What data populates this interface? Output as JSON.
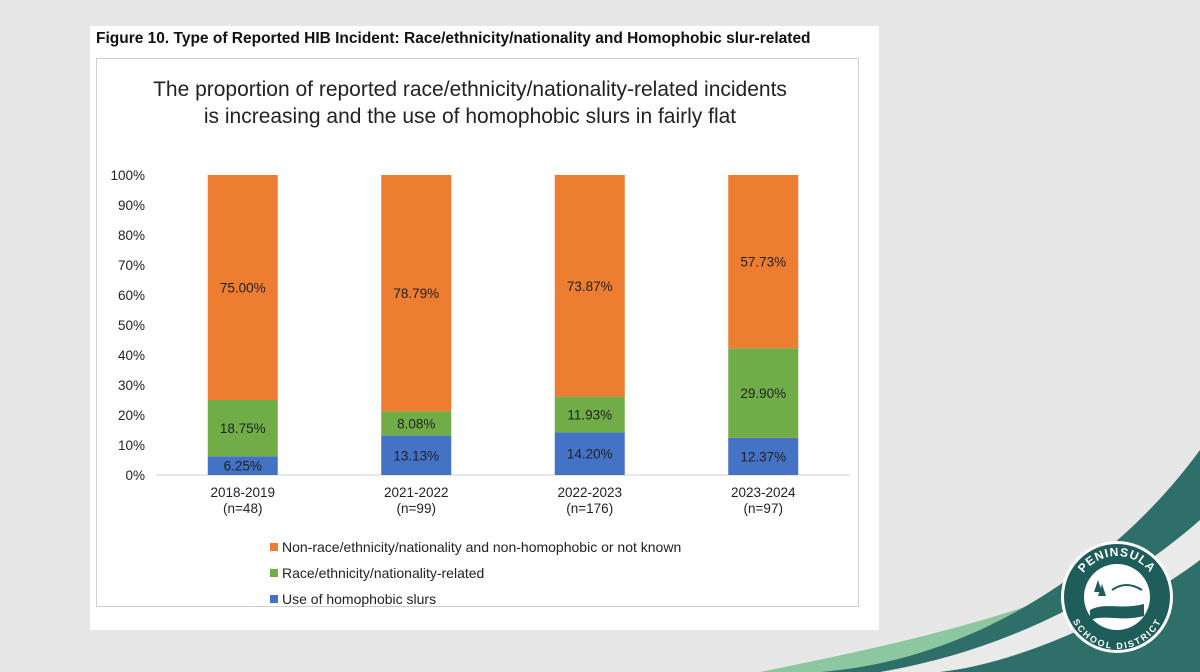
{
  "figure_caption": "Figure 10. Type of Reported HIB Incident: Race/ethnicity/nationality and Homophobic slur-related",
  "logo": {
    "text_top": "PENINSULA",
    "text_bottom": "SCHOOL DISTRICT"
  },
  "colors": {
    "non_race": "#ed7d31",
    "race": "#70ad47",
    "homophobic": "#4472c4",
    "slide_accent_teal": "#2f6f6a",
    "slide_accent_green": "#8cc7a0"
  },
  "chart_data": {
    "type": "bar",
    "stacked": true,
    "title": "The proportion of reported race/ethnicity/nationality-related incidents is increasing and the use of homophobic slurs in fairly flat",
    "ylim": [
      0,
      100
    ],
    "y_ticks": [
      "0%",
      "10%",
      "20%",
      "30%",
      "40%",
      "50%",
      "60%",
      "70%",
      "80%",
      "90%",
      "100%"
    ],
    "categories": [
      {
        "label": "2018-2019",
        "n": "(n=48)"
      },
      {
        "label": "2021-2022",
        "n": "(n=99)"
      },
      {
        "label": "2022-2023",
        "n": "(n=176)"
      },
      {
        "label": "2023-2024",
        "n": "(n=97)"
      }
    ],
    "series": [
      {
        "name": "Use of homophobic slurs",
        "color": "#4472c4",
        "values": [
          6.25,
          13.13,
          14.2,
          12.37
        ],
        "labels": [
          "6.25%",
          "13.13%",
          "14.20%",
          "12.37%"
        ]
      },
      {
        "name": "Race/ethnicity/nationality-related",
        "color": "#70ad47",
        "values": [
          18.75,
          8.08,
          11.93,
          29.9
        ],
        "labels": [
          "18.75%",
          "8.08%",
          "11.93%",
          "29.90%"
        ]
      },
      {
        "name": "Non-race/ethnicity/nationality and non-homophobic or not known",
        "color": "#ed7d31",
        "values": [
          75.0,
          78.79,
          73.87,
          57.73
        ],
        "labels": [
          "75.00%",
          "78.79%",
          "73.87%",
          "57.73%"
        ]
      }
    ],
    "legend_order": [
      2,
      1,
      0
    ],
    "legend_position": "bottom",
    "grid": false
  }
}
